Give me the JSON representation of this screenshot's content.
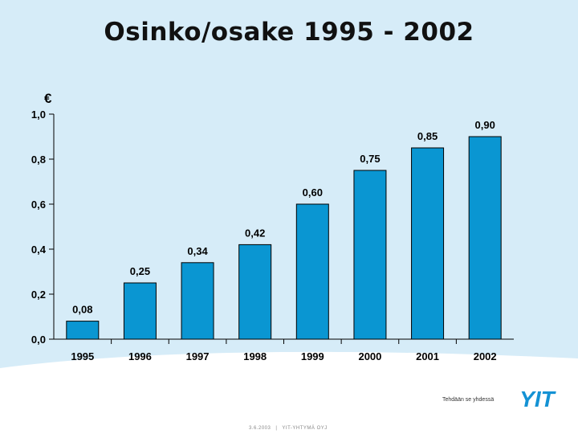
{
  "slide": {
    "title": "Osinko/osake 1995 - 2002",
    "tagline": "Tehdään se yhdessä",
    "footer_date": "3.6.2003",
    "footer_company": "YIT-YHTYMÄ OYJ",
    "logo_text": "YIT"
  },
  "colors": {
    "background": "#d6ecf8",
    "bar": "#0a96d2",
    "bar_edge": "#000000",
    "logo": "#1492d4"
  },
  "chart_data": {
    "type": "bar",
    "title": "",
    "ylabel": "€",
    "xlabel": "",
    "categories": [
      "1995",
      "1996",
      "1997",
      "1998",
      "1999",
      "2000",
      "2001",
      "2002"
    ],
    "values": [
      0.08,
      0.25,
      0.34,
      0.42,
      0.6,
      0.75,
      0.85,
      0.9
    ],
    "value_labels": [
      "0,08",
      "0,25",
      "0,34",
      "0,42",
      "0,60",
      "0,75",
      "0,85",
      "0,90"
    ],
    "ylim": [
      0,
      1.0
    ],
    "yticks": [
      0.0,
      0.2,
      0.4,
      0.6,
      0.8,
      1.0
    ],
    "ytick_labels": [
      "0,0",
      "0,2",
      "0,4",
      "0,6",
      "0,8",
      "1,0"
    ],
    "grid": false,
    "legend": "none"
  }
}
